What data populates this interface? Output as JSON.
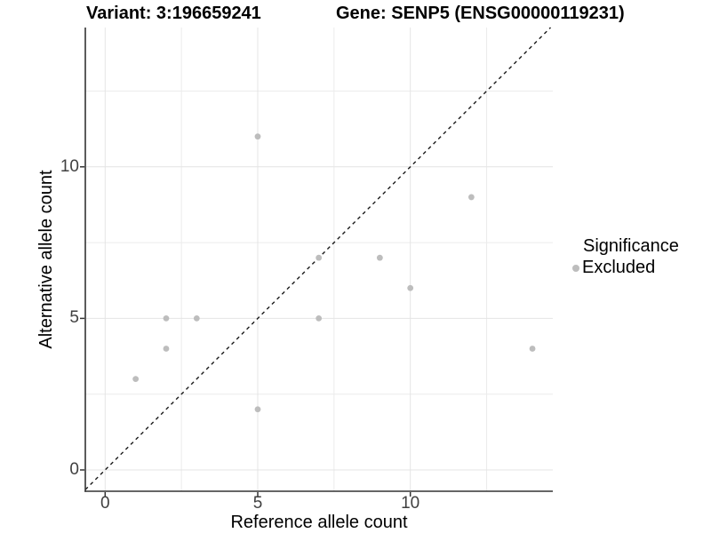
{
  "chart_data": {
    "type": "scatter",
    "title_left": "Variant: 3:196659241",
    "title_right": "Gene: SENP5 (ENSG00000119231)",
    "xlabel": "Reference allele count",
    "ylabel": "Alternative allele count",
    "xlim": [
      -0.65,
      14.65
    ],
    "ylim": [
      -0.65,
      14.65
    ],
    "x_major_ticks": [
      0,
      5,
      10
    ],
    "y_major_ticks": [
      0,
      5,
      10
    ],
    "minor_gridlines": [
      2.5,
      7.5,
      12.5
    ],
    "grid": "major and minor, light grey, on white panel",
    "legend_position": "right",
    "identity_line": {
      "slope": 1,
      "intercept": 0,
      "style": "dashed",
      "color": "#1a1a1a"
    },
    "series": [
      {
        "name": "Excluded",
        "color": "#bdbdbd",
        "points": [
          [
            1,
            3
          ],
          [
            2,
            4
          ],
          [
            2,
            5
          ],
          [
            3,
            5
          ],
          [
            5,
            2
          ],
          [
            5,
            11
          ],
          [
            7,
            5
          ],
          [
            7,
            7
          ],
          [
            9,
            7
          ],
          [
            10,
            6
          ],
          [
            12,
            9
          ],
          [
            14,
            4
          ]
        ]
      }
    ]
  },
  "legend": {
    "title": "Significance",
    "items": [
      {
        "label": "Excluded",
        "color": "#bdbdbd"
      }
    ]
  },
  "colors": {
    "background": "#ffffff",
    "grid_major": "#e4e4e4",
    "grid_minor": "#ececec",
    "axis_line": "#333333",
    "tick_mark": "#333333",
    "tick_label": "#404040",
    "point": "#bdbdbd",
    "dashed_line": "#1a1a1a"
  }
}
